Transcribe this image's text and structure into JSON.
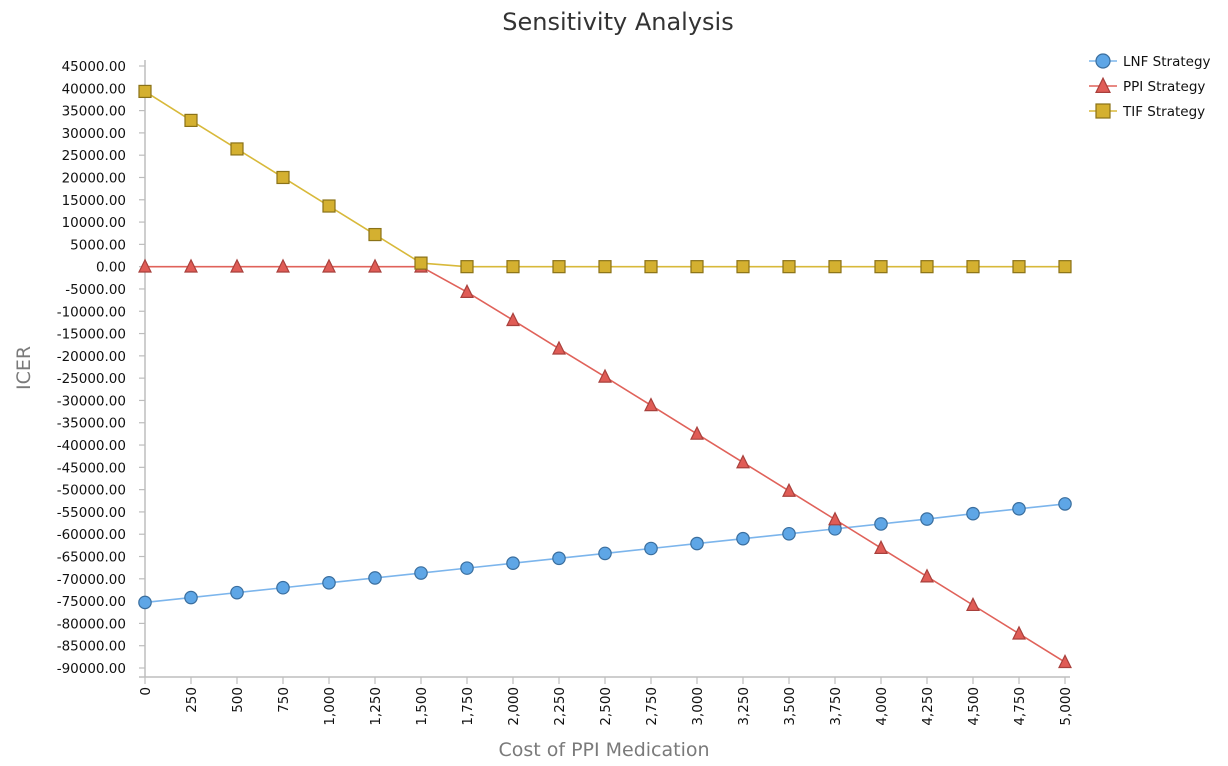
{
  "chart_data": {
    "type": "line",
    "title": "Sensitivity Analysis",
    "xlabel": "Cost of PPI Medication",
    "ylabel": "ICER",
    "x": [
      0,
      250,
      500,
      750,
      1000,
      1250,
      1500,
      1750,
      2000,
      2250,
      2500,
      2750,
      3000,
      3250,
      3500,
      3750,
      4000,
      4250,
      4500,
      4750,
      5000
    ],
    "x_tick_labels": [
      "0",
      "250",
      "500",
      "750",
      "1,000",
      "1,250",
      "1,500",
      "1,750",
      "2,000",
      "2,250",
      "2,500",
      "2,750",
      "3,000",
      "3,250",
      "3,500",
      "3,750",
      "4,000",
      "4,250",
      "4,500",
      "4,750",
      "5,000"
    ],
    "xlim": [
      0,
      5000
    ],
    "ylim": [
      -90000,
      45000
    ],
    "y_ticks": [
      45000,
      40000,
      35000,
      30000,
      25000,
      20000,
      15000,
      10000,
      5000,
      0,
      -5000,
      -10000,
      -15000,
      -20000,
      -25000,
      -30000,
      -35000,
      -40000,
      -45000,
      -50000,
      -55000,
      -60000,
      -65000,
      -70000,
      -75000,
      -80000,
      -85000,
      -90000
    ],
    "y_tick_labels": [
      "45000.00",
      "40000.00",
      "35000.00",
      "30000.00",
      "25000.00",
      "20000.00",
      "15000.00",
      "10000.00",
      "5000.00",
      "0.00",
      "-5000.00",
      "-10000.00",
      "-15000.00",
      "-20000.00",
      "-25000.00",
      "-30000.00",
      "-35000.00",
      "-40000.00",
      "-45000.00",
      "-50000.00",
      "-55000.00",
      "-60000.00",
      "-65000.00",
      "-70000.00",
      "-75000.00",
      "-80000.00",
      "-85000.00",
      "-90000.00"
    ],
    "grid": false,
    "legend_position": "top-right",
    "series": [
      {
        "name": "LNF Strategy",
        "marker": "circle",
        "line_color": "#7cb5ec",
        "marker_fill": "#5ea6e6",
        "marker_stroke": "#3a6e9e",
        "values": [
          -75300,
          -74200,
          -73100,
          -72000,
          -70900,
          -69800,
          -68700,
          -67600,
          -66500,
          -65400,
          -64300,
          -63200,
          -62100,
          -61000,
          -59900,
          -58800,
          -57700,
          -56600,
          -55400,
          -54300,
          -53200
        ]
      },
      {
        "name": "PPI Strategy",
        "marker": "triangle",
        "line_color": "#e0625a",
        "marker_fill": "#e05c56",
        "marker_stroke": "#a8403c",
        "values": [
          0,
          0,
          0,
          0,
          0,
          0,
          0,
          -5700,
          -12000,
          -18400,
          -24700,
          -31100,
          -37500,
          -43900,
          -50300,
          -56700,
          -63100,
          -69500,
          -75900,
          -82300,
          -88700
        ]
      },
      {
        "name": "TIF Strategy",
        "marker": "square",
        "line_color": "#d8b93a",
        "marker_fill": "#d4b030",
        "marker_stroke": "#8a7218",
        "values": [
          39300,
          32800,
          26400,
          20000,
          13600,
          7200,
          800,
          0,
          0,
          0,
          0,
          0,
          0,
          0,
          0,
          0,
          0,
          0,
          0,
          0,
          0
        ]
      }
    ]
  }
}
